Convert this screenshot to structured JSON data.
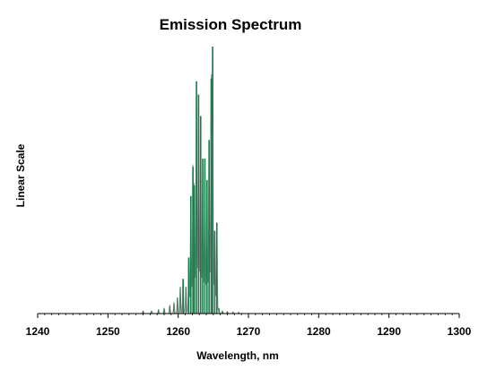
{
  "chart_data": {
    "type": "line",
    "title": "Emission Spectrum",
    "xlabel": "Wavelength, nm",
    "ylabel": "Linear Scale",
    "xlim": [
      1240,
      1300
    ],
    "ylim": [
      0,
      1
    ],
    "xticks": [
      1240,
      1250,
      1260,
      1270,
      1280,
      1290,
      1300
    ],
    "xtick_labels": [
      "1240",
      "1250",
      "1260",
      "1270",
      "1280",
      "1290",
      "1300"
    ],
    "grid": false,
    "legend": "none",
    "colors": {
      "line": "#888888",
      "peaks": "#1a7a4a",
      "axis": "#000000"
    },
    "series": [
      {
        "peaks": [
          {
            "x": 1255.0,
            "y": 0.01
          },
          {
            "x": 1256.2,
            "y": 0.01
          },
          {
            "x": 1257.2,
            "y": 0.015
          },
          {
            "x": 1258.0,
            "y": 0.02
          },
          {
            "x": 1258.8,
            "y": 0.03
          },
          {
            "x": 1259.4,
            "y": 0.04
          },
          {
            "x": 1259.9,
            "y": 0.06
          },
          {
            "x": 1260.3,
            "y": 0.1
          },
          {
            "x": 1260.7,
            "y": 0.13
          },
          {
            "x": 1261.1,
            "y": 0.1
          },
          {
            "x": 1261.5,
            "y": 0.21
          },
          {
            "x": 1261.8,
            "y": 0.44
          },
          {
            "x": 1262.1,
            "y": 0.55
          },
          {
            "x": 1262.3,
            "y": 0.48
          },
          {
            "x": 1262.6,
            "y": 0.87
          },
          {
            "x": 1262.9,
            "y": 0.82
          },
          {
            "x": 1263.2,
            "y": 0.74
          },
          {
            "x": 1263.5,
            "y": 0.58
          },
          {
            "x": 1263.8,
            "y": 0.58
          },
          {
            "x": 1264.1,
            "y": 0.5
          },
          {
            "x": 1264.4,
            "y": 0.65
          },
          {
            "x": 1264.7,
            "y": 0.88
          },
          {
            "x": 1264.9,
            "y": 1.0
          },
          {
            "x": 1265.2,
            "y": 0.31
          },
          {
            "x": 1265.5,
            "y": 0.34
          },
          {
            "x": 1265.8,
            "y": 0.02
          },
          {
            "x": 1266.3,
            "y": 0.01
          },
          {
            "x": 1267.0,
            "y": 0.008
          },
          {
            "x": 1267.8,
            "y": 0.006
          },
          {
            "x": 1268.6,
            "y": 0.005
          }
        ]
      }
    ]
  }
}
